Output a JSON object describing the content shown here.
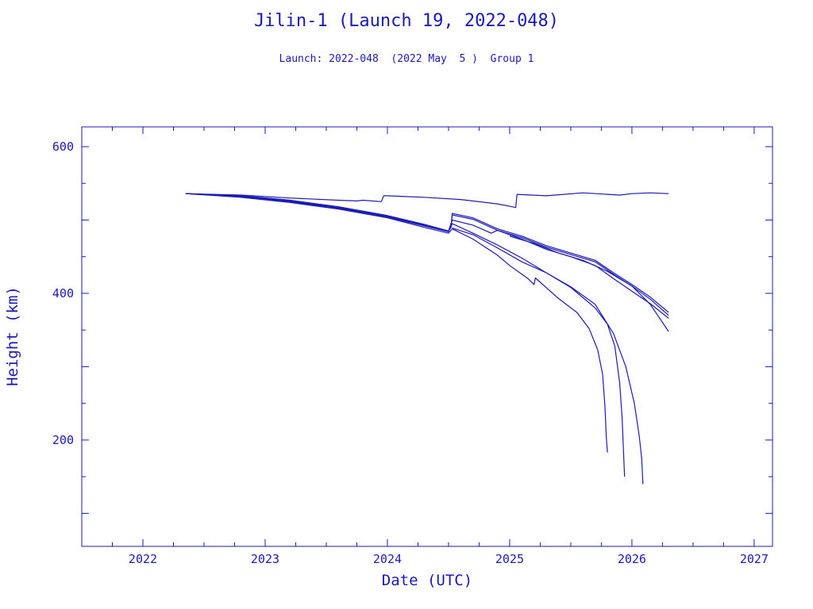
{
  "chart_data": {
    "type": "line",
    "title": "Jilin-1 (Launch 19, 2022-048)",
    "subtitle": "Launch: 2022-048  (2022 May  5 )  Group 1",
    "xlabel": "Date (UTC)",
    "ylabel": "Height (km)",
    "xlim": [
      2021.5,
      2027.15
    ],
    "ylim": [
      55,
      627
    ],
    "x_ticks": [
      2022,
      2023,
      2024,
      2025,
      2026,
      2027
    ],
    "y_ticks": [
      200,
      400,
      600
    ],
    "grid": false,
    "line_color": "#1a1ab8",
    "series": [
      {
        "values": [
          [
            2022.35,
            536
          ],
          [
            2022.8,
            534
          ],
          [
            2023.2,
            530
          ],
          [
            2023.6,
            527
          ],
          [
            2023.75,
            526
          ],
          [
            2023.8,
            527
          ],
          [
            2023.95,
            525
          ],
          [
            2023.97,
            533
          ],
          [
            2024.0,
            533
          ],
          [
            2024.3,
            531
          ],
          [
            2024.6,
            528
          ],
          [
            2024.9,
            522
          ],
          [
            2025.05,
            517
          ],
          [
            2025.06,
            535
          ],
          [
            2025.3,
            533
          ],
          [
            2025.6,
            537
          ],
          [
            2025.9,
            534
          ],
          [
            2026.0,
            536
          ],
          [
            2026.15,
            537
          ],
          [
            2026.3,
            536
          ]
        ]
      },
      {
        "values": [
          [
            2022.35,
            536
          ],
          [
            2022.8,
            533
          ],
          [
            2023.2,
            527
          ],
          [
            2023.6,
            518
          ],
          [
            2024.0,
            506
          ],
          [
            2024.3,
            494
          ],
          [
            2024.5,
            485
          ],
          [
            2024.52,
            490
          ],
          [
            2024.53,
            509
          ],
          [
            2024.7,
            503
          ],
          [
            2024.9,
            488
          ],
          [
            2025.1,
            478
          ],
          [
            2025.3,
            465
          ],
          [
            2025.5,
            455
          ],
          [
            2025.7,
            445
          ],
          [
            2025.85,
            428
          ],
          [
            2026.0,
            412
          ],
          [
            2026.15,
            395
          ],
          [
            2026.3,
            374
          ]
        ]
      },
      {
        "values": [
          [
            2022.35,
            536
          ],
          [
            2022.8,
            533
          ],
          [
            2023.2,
            527
          ],
          [
            2023.6,
            518
          ],
          [
            2024.0,
            506
          ],
          [
            2024.3,
            494
          ],
          [
            2024.5,
            485
          ],
          [
            2024.52,
            490
          ],
          [
            2024.53,
            507
          ],
          [
            2024.7,
            501
          ],
          [
            2024.9,
            486
          ],
          [
            2025.1,
            476
          ],
          [
            2025.3,
            463
          ],
          [
            2025.5,
            453
          ],
          [
            2025.7,
            443
          ],
          [
            2025.85,
            426
          ],
          [
            2026.0,
            410
          ],
          [
            2026.15,
            392
          ],
          [
            2026.3,
            370
          ]
        ]
      },
      {
        "values": [
          [
            2022.35,
            536
          ],
          [
            2022.8,
            532
          ],
          [
            2023.2,
            526
          ],
          [
            2023.6,
            517
          ],
          [
            2024.0,
            505
          ],
          [
            2024.3,
            493
          ],
          [
            2024.5,
            485
          ],
          [
            2024.53,
            500
          ],
          [
            2024.7,
            493
          ],
          [
            2024.85,
            482
          ],
          [
            2024.9,
            486
          ],
          [
            2025.1,
            474
          ],
          [
            2025.3,
            460
          ],
          [
            2025.5,
            450
          ],
          [
            2025.7,
            438
          ],
          [
            2025.85,
            420
          ],
          [
            2026.0,
            403
          ],
          [
            2026.15,
            386
          ],
          [
            2026.3,
            366
          ]
        ]
      },
      {
        "values": [
          [
            2022.35,
            536
          ],
          [
            2022.8,
            532
          ],
          [
            2023.2,
            525
          ],
          [
            2023.6,
            516
          ],
          [
            2024.0,
            504
          ],
          [
            2024.3,
            492
          ],
          [
            2024.5,
            484
          ],
          [
            2024.53,
            495
          ],
          [
            2024.7,
            482
          ],
          [
            2024.9,
            466
          ],
          [
            2025.1,
            448
          ],
          [
            2025.3,
            428
          ],
          [
            2025.5,
            408
          ],
          [
            2025.7,
            380
          ],
          [
            2025.8,
            358
          ],
          [
            2025.86,
            328
          ],
          [
            2025.9,
            278
          ],
          [
            2025.92,
            230
          ],
          [
            2025.93,
            190
          ],
          [
            2025.94,
            150
          ]
        ]
      },
      {
        "values": [
          [
            2022.35,
            536
          ],
          [
            2022.8,
            531
          ],
          [
            2023.2,
            524
          ],
          [
            2023.6,
            515
          ],
          [
            2024.0,
            503
          ],
          [
            2024.3,
            490
          ],
          [
            2024.5,
            482
          ],
          [
            2024.53,
            488
          ],
          [
            2024.7,
            474
          ],
          [
            2024.9,
            452
          ],
          [
            2025.0,
            438
          ],
          [
            2025.15,
            420
          ],
          [
            2025.2,
            412
          ],
          [
            2025.21,
            421
          ],
          [
            2025.4,
            393
          ],
          [
            2025.55,
            374
          ],
          [
            2025.65,
            352
          ],
          [
            2025.72,
            323
          ],
          [
            2025.76,
            290
          ],
          [
            2025.78,
            245
          ],
          [
            2025.79,
            205
          ],
          [
            2025.8,
            183
          ]
        ]
      },
      {
        "values": [
          [
            2024.53,
            489
          ],
          [
            2024.7,
            480
          ],
          [
            2024.9,
            462
          ],
          [
            2025.1,
            443
          ],
          [
            2025.3,
            428
          ],
          [
            2025.5,
            409
          ],
          [
            2025.7,
            385
          ],
          [
            2025.85,
            345
          ],
          [
            2025.95,
            300
          ],
          [
            2026.02,
            250
          ],
          [
            2026.06,
            205
          ],
          [
            2026.08,
            175
          ],
          [
            2026.09,
            140
          ]
        ]
      },
      {
        "values": [
          [
            2025.0,
            478
          ],
          [
            2025.2,
            468
          ],
          [
            2025.4,
            455
          ],
          [
            2025.6,
            445
          ],
          [
            2025.8,
            430
          ],
          [
            2026.0,
            410
          ],
          [
            2026.15,
            385
          ],
          [
            2026.3,
            348
          ]
        ]
      }
    ]
  }
}
